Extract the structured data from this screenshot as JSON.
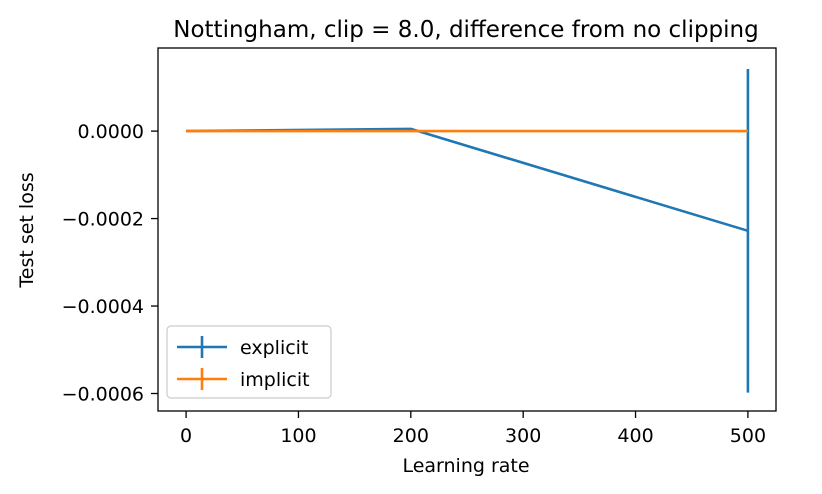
{
  "chart_data": {
    "type": "line",
    "title": "Nottingham, clip = 8.0, difference from no clipping",
    "xlabel": "Learning rate",
    "ylabel": "Test set loss",
    "xlim": [
      -25,
      525
    ],
    "ylim": [
      -0.00064,
      0.00019
    ],
    "x_ticks": [
      0,
      100,
      200,
      300,
      400,
      500
    ],
    "x_tick_labels": [
      "0",
      "100",
      "200",
      "300",
      "400",
      "500"
    ],
    "y_ticks": [
      0.0,
      -0.0002,
      -0.0004,
      -0.0006
    ],
    "y_tick_labels": [
      "0.0000",
      "−0.0002",
      "−0.0004",
      "−0.0006"
    ],
    "grid": false,
    "legend_position": "lower-left",
    "series": [
      {
        "name": "explicit",
        "color": "#1f77b4",
        "x": [
          0,
          200,
          500
        ],
        "y": [
          0.0,
          5e-06,
          -0.000228
        ],
        "yerr": [
          0.0,
          0.0,
          0.00037
        ]
      },
      {
        "name": "implicit",
        "color": "#ff7f0e",
        "x": [
          0,
          200,
          500
        ],
        "y": [
          0.0,
          0.0,
          0.0
        ],
        "yerr": [
          0.0,
          0.0,
          0.0
        ]
      }
    ]
  }
}
